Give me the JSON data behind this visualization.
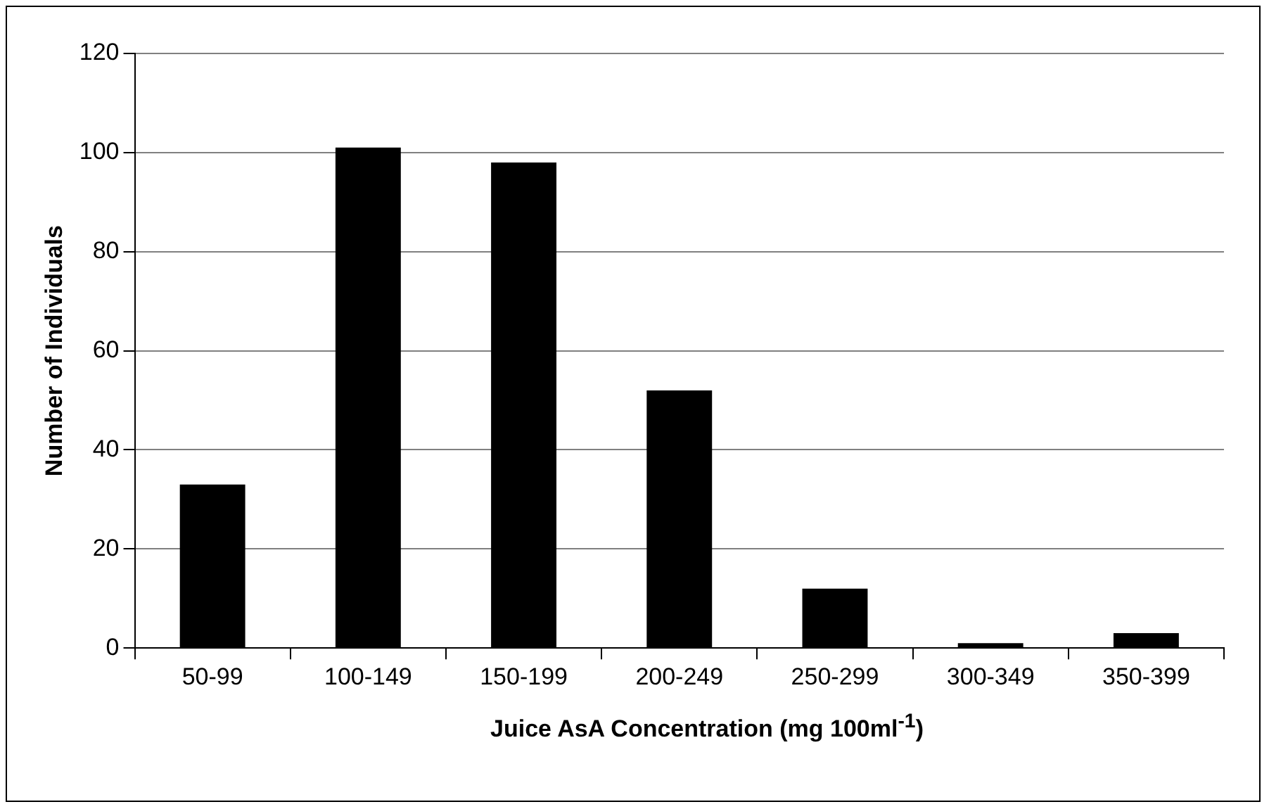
{
  "chart_data": {
    "type": "bar",
    "xlabel": "Juice AsA Concentration (mg 100ml$^{-1}$)",
    "ylabel": "Number of Individuals",
    "categories": [
      "50-99",
      "100-149",
      "150-199",
      "200-249",
      "250-299",
      "300-349",
      "350-399"
    ],
    "values": [
      33,
      101,
      98,
      52,
      12,
      1,
      3
    ],
    "color": "#000000",
    "ylim": [
      0,
      120
    ],
    "yticks": [
      0,
      20,
      40,
      60,
      80,
      100,
      120
    ],
    "grid": "y",
    "legend": false
  }
}
